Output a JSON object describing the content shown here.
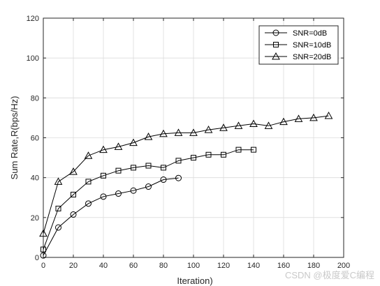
{
  "chart_data": {
    "type": "line",
    "title": "",
    "xlabel": "Iteration)",
    "ylabel": "Sum Rate,R(bps/Hz)",
    "xlim": [
      0,
      200
    ],
    "ylim": [
      0,
      120
    ],
    "xticks": [
      0,
      20,
      40,
      60,
      80,
      100,
      120,
      140,
      160,
      180,
      200
    ],
    "yticks": [
      0,
      20,
      40,
      60,
      80,
      100,
      120
    ],
    "grid": true,
    "legend_position": "top-right",
    "series": [
      {
        "name": "SNR=0dB",
        "marker": "circle",
        "x": [
          0,
          10,
          20,
          30,
          40,
          50,
          60,
          70,
          80,
          90
        ],
        "y": [
          1,
          15,
          21.5,
          27,
          30.5,
          32,
          33.5,
          35.5,
          39,
          39.8
        ]
      },
      {
        "name": "SNR=10dB",
        "marker": "square",
        "x": [
          0,
          10,
          20,
          30,
          40,
          50,
          60,
          70,
          80,
          90,
          100,
          110,
          120,
          130,
          140
        ],
        "y": [
          4,
          24.5,
          31.5,
          38,
          41,
          43.5,
          45,
          46,
          45,
          48.5,
          50,
          51.5,
          51.5,
          54,
          54
        ]
      },
      {
        "name": "SNR=20dB",
        "marker": "triangle",
        "x": [
          0,
          10,
          20,
          30,
          40,
          50,
          60,
          70,
          80,
          90,
          100,
          110,
          120,
          130,
          140,
          150,
          160,
          170,
          180,
          190
        ],
        "y": [
          12,
          38,
          43,
          51,
          54,
          55.5,
          57.5,
          60.5,
          62,
          62.5,
          62.5,
          64,
          65,
          66,
          67,
          66,
          68,
          69.5,
          70,
          71
        ]
      }
    ]
  },
  "watermark": "CSDN @极度爱C编程"
}
